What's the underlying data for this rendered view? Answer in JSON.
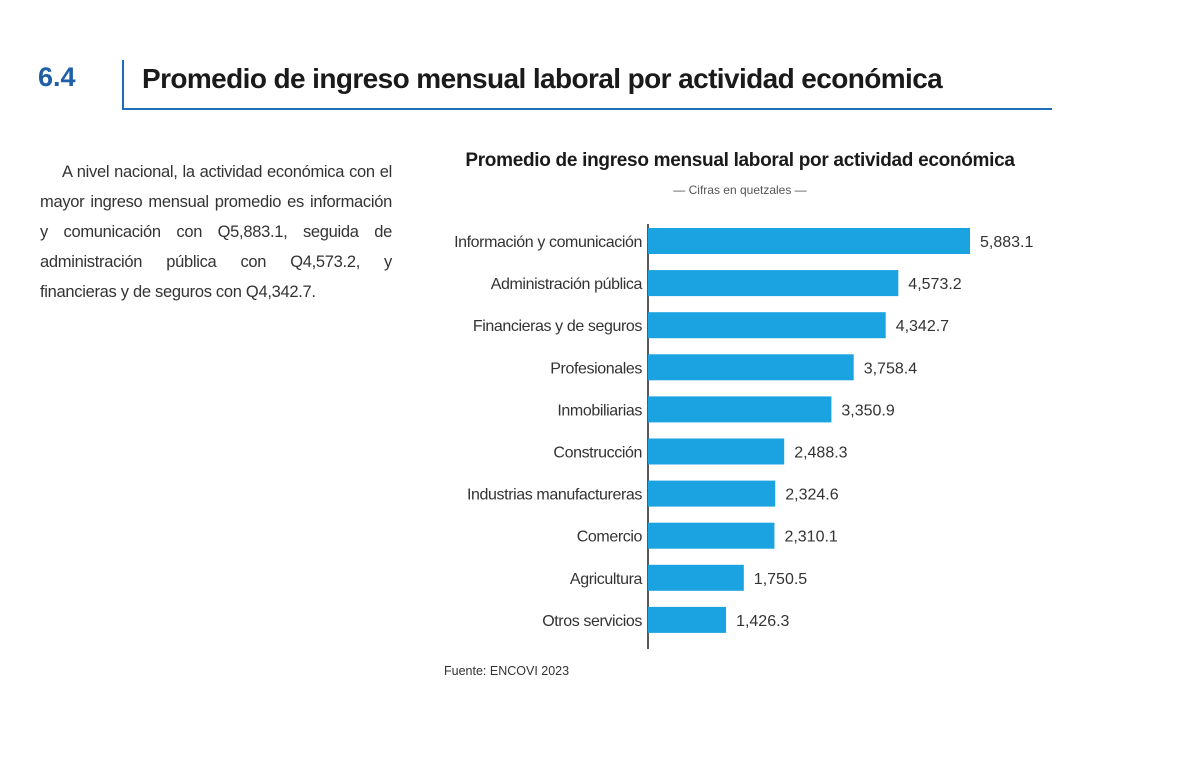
{
  "section": {
    "number": "6.4",
    "title": "Promedio de ingreso mensual laboral por actividad económica"
  },
  "intro_text": "A nivel nacional, la actividad económica con el mayor ingreso mensual promedio es información y comunicación con Q5,883.1, seguida de administración pública con Q4,573.2, y financieras y de seguros con Q4,342.7.",
  "source": "Fuente: ENCOVI 2023",
  "colors": {
    "bar": "#1aa3e0",
    "accent": "#1f6fb8"
  },
  "chart_data": {
    "type": "bar",
    "orientation": "horizontal",
    "title": "Promedio de ingreso mensual laboral por actividad económica",
    "subtitle": "— Cifras en quetzales —",
    "categories": [
      "Información y comunicación",
      "Administración pública",
      "Financieras y de seguros",
      "Profesionales",
      "Inmobiliarias",
      "Construcción",
      "Industrias manufactureras",
      "Comercio",
      "Agricultura",
      "Otros servicios"
    ],
    "values": [
      5883.1,
      4573.2,
      4342.7,
      3758.4,
      3350.9,
      2488.3,
      2324.6,
      2310.1,
      1750.5,
      1426.3
    ],
    "value_labels": [
      "5,883.1",
      "4,573.2",
      "4,342.7",
      "3,758.4",
      "3,350.9",
      "2,488.3",
      "2,324.6",
      "2,310.1",
      "1,750.5",
      "1,426.3"
    ],
    "xlim": [
      0,
      5883.1
    ],
    "grid": false,
    "legend": "none"
  }
}
